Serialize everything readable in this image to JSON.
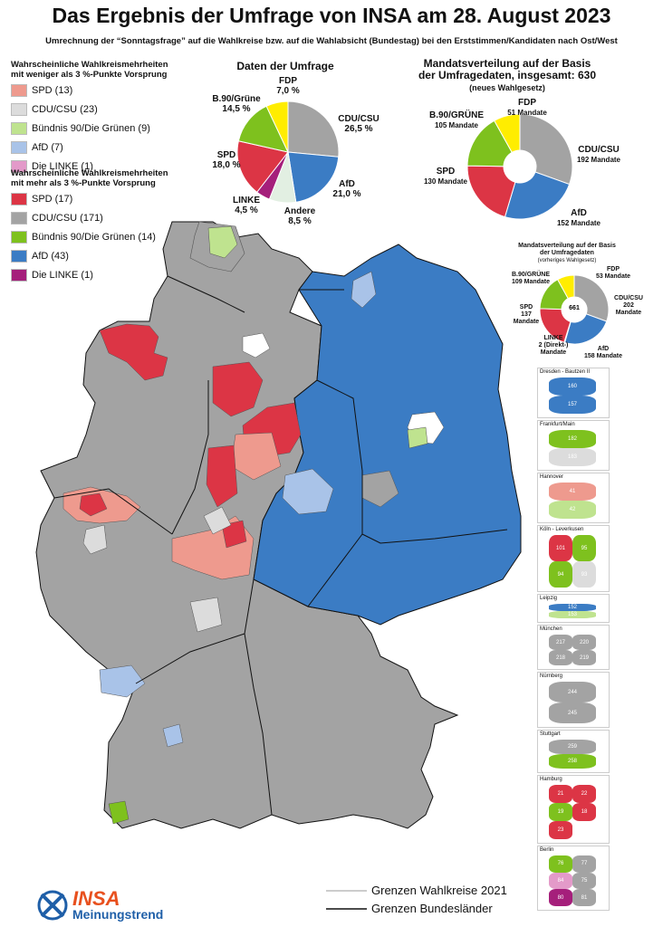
{
  "title": "Das Ergebnis der Umfrage von INSA am 28. August 2023",
  "subtitle": "Umrechnung der “Sonntagsfrage” auf die Wahlkreise bzw. auf die Wahlabsicht (Bundestag) bei den Erststimmen/Kandidaten nach Ost/West",
  "legend": {
    "header_weak": "Wahrscheinliche Wahlkreismehrheiten mit weniger als 3 %-Punkte Vorsprung",
    "weak": [
      {
        "label": "SPD (13)",
        "color": "#ee9a8e"
      },
      {
        "label": "CDU/CSU (23)",
        "color": "#dcdcdc"
      },
      {
        "label": "Bündnis 90/Die Grünen (9)",
        "color": "#bfe38f"
      },
      {
        "label": "AfD (7)",
        "color": "#a9c3e8"
      },
      {
        "label": "Die LINKE (1)",
        "color": "#e39ac9"
      }
    ],
    "header_strong": "Wahrscheinliche Wahlkreismehrheiten mit mehr als 3 %-Punkte Vorsprung",
    "strong": [
      {
        "label": "SPD (17)",
        "color": "#dc3545"
      },
      {
        "label": "CDU/CSU (171)",
        "color": "#a3a3a3"
      },
      {
        "label": "Bündnis 90/Die Grünen (14)",
        "color": "#7ec11e"
      },
      {
        "label": "AfD (43)",
        "color": "#3b7cc4"
      },
      {
        "label": "Die LINKE (1)",
        "color": "#a51f7b"
      }
    ]
  },
  "survey": {
    "title": "Daten der Umfrage",
    "slices": [
      {
        "party": "CDU/CSU",
        "value": 26.5,
        "label": "CDU/CSU",
        "pct": "26,5 %",
        "color": "#a3a3a3"
      },
      {
        "party": "AfD",
        "value": 21.0,
        "label": "AfD",
        "pct": "21,0 %",
        "color": "#3b7cc4"
      },
      {
        "party": "Andere",
        "value": 8.5,
        "label": "Andere",
        "pct": "8,5 %",
        "color": "#e2efe2"
      },
      {
        "party": "LINKE",
        "value": 4.5,
        "label": "LINKE",
        "pct": "4,5 %",
        "color": "#a51f7b"
      },
      {
        "party": "SPD",
        "value": 18.0,
        "label": "SPD",
        "pct": "18,0 %",
        "color": "#dc3545"
      },
      {
        "party": "B.90/Grüne",
        "value": 14.5,
        "label": "B.90/Grüne",
        "pct": "14,5 %",
        "color": "#7ec11e"
      },
      {
        "party": "FDP",
        "value": 7.0,
        "label": "FDP",
        "pct": "7,0 %",
        "color": "#ffed00"
      }
    ]
  },
  "seats": {
    "title_line1": "Mandatsverteilung auf der Basis",
    "title_line2": "der Umfragedaten, insgesamt: 630",
    "title_line3": "(neues Wahlgesetz)",
    "slices": [
      {
        "party": "CDU/CSU",
        "value": 192,
        "label": "CDU/CSU",
        "seats": "192 Mandate",
        "color": "#a3a3a3"
      },
      {
        "party": "AfD",
        "value": 152,
        "label": "AfD",
        "seats": "152 Mandate",
        "color": "#3b7cc4"
      },
      {
        "party": "SPD",
        "value": 130,
        "label": "SPD",
        "seats": "130 Mandate",
        "color": "#dc3545"
      },
      {
        "party": "B.90/GRÜNE",
        "value": 105,
        "label": "B.90/GRÜNE",
        "seats": "105 Mandate",
        "color": "#7ec11e"
      },
      {
        "party": "FDP",
        "value": 51,
        "label": "FDP",
        "seats": "51 Mandate",
        "color": "#ffed00"
      }
    ]
  },
  "seats_old": {
    "title_line1": "Mandatsverteilung auf der Basis",
    "title_line2": "der Umfragedaten",
    "title_line3": "(vorheriges Wahlgesetz)",
    "total": "661",
    "slices": [
      {
        "party": "CDU/CSU",
        "value": 202,
        "label": "CDU/CSU",
        "seats": "202 Mandate",
        "color": "#a3a3a3"
      },
      {
        "party": "AfD",
        "value": 158,
        "label": "AfD",
        "seats": "158 Mandate",
        "color": "#3b7cc4"
      },
      {
        "party": "LINKE",
        "value": 2,
        "label": "LINKE",
        "seats": "2 (Direkt-) Mandate",
        "color": "#a51f7b"
      },
      {
        "party": "SPD",
        "value": 137,
        "label": "SPD",
        "seats": "137 Mandate",
        "color": "#dc3545"
      },
      {
        "party": "B.90/GRÜNE",
        "value": 109,
        "label": "B.90/GRÜNE",
        "seats": "109 Mandate",
        "color": "#7ec11e"
      },
      {
        "party": "FDP",
        "value": 53,
        "label": "FDP",
        "seats": "53 Mandate",
        "color": "#ffed00"
      }
    ]
  },
  "insets": [
    {
      "name": "Dresden - Bautzen II",
      "nums": [
        "160",
        "157"
      ]
    },
    {
      "name": "Frankfurt/Main",
      "nums": [
        "182",
        "183"
      ]
    },
    {
      "name": "Hannover",
      "nums": [
        "41",
        "42"
      ]
    },
    {
      "name": "Köln - Leverkusen",
      "nums": [
        "101",
        "95",
        "94",
        "93"
      ]
    },
    {
      "name": "Leipzig",
      "nums": [
        "152",
        "153"
      ]
    },
    {
      "name": "München",
      "nums": [
        "217",
        "220",
        "218",
        "219"
      ]
    },
    {
      "name": "Nürnberg",
      "nums": [
        "244",
        "245"
      ]
    },
    {
      "name": "Stuttgart",
      "nums": [
        "259",
        "258"
      ]
    },
    {
      "name": "Hamburg",
      "nums": [
        "21",
        "22",
        "19",
        "18",
        "23"
      ]
    },
    {
      "name": "Berlin",
      "nums": [
        "76",
        "77",
        "84",
        "75",
        "80",
        "81"
      ]
    }
  ],
  "footer": {
    "line_wk": "Grenzen Wahlkreise 2021",
    "line_bl": "Grenzen Bundesländer",
    "logo_insa": "INSA",
    "logo_sub": "Meinungstrend"
  },
  "colors": {
    "cdu": "#a3a3a3",
    "afd": "#3b7cc4",
    "spd": "#dc3545",
    "green": "#7ec11e",
    "spd_light": "#ee9a8e",
    "cdu_light": "#dcdcdc",
    "green_light": "#bfe38f",
    "afd_light": "#a9c3e8",
    "linke": "#a51f7b",
    "fdp": "#ffed00"
  }
}
